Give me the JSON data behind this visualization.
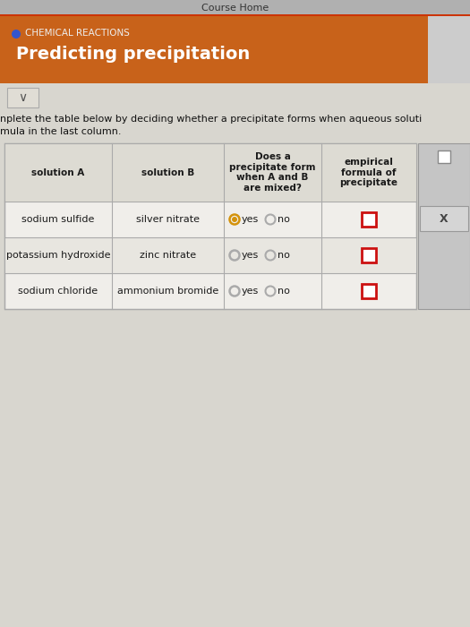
{
  "title_label": "CHEMICAL REACTIONS",
  "title_main": "Predicting precipitation",
  "header_bg": "#c8621a",
  "header_text_color": "#ffffff",
  "header_label_color": "#eeeeee",
  "page_bg": "#cccccc",
  "course_home": "Course Home",
  "instruction_line1": "nplete the table below by deciding whether a precipitate forms when aqueous soluti",
  "instruction_line2": "mula in the last column.",
  "col_headers": [
    "solution A",
    "solution B",
    "Does a\nprecipitate form\nwhen A and B\nare mixed?",
    "empirical\nformula of\nprecipitate"
  ],
  "rows": [
    [
      "sodium sulfide",
      "silver nitrate",
      "yes_selected"
    ],
    [
      "potassium hydroxide",
      "zinc nitrate",
      "no_unselected"
    ],
    [
      "sodium chloride",
      "ammonium bromide",
      "no_unselected"
    ]
  ],
  "table_border_color": "#aaaaaa",
  "cell_text_color": "#1a1a1a",
  "radio_selected_color": "#d4920a",
  "radio_unselected_color": "#aaaaaa",
  "red_box_color": "#cc1111",
  "top_bar_bg": "#b0b0b0",
  "top_bar_line_color": "#cc3300",
  "white_area_bg": "#e8e6df",
  "table_bg": "#f0eeea",
  "header_row_bg": "#dddbd3",
  "side_panel_bg": "#c5c5c5"
}
